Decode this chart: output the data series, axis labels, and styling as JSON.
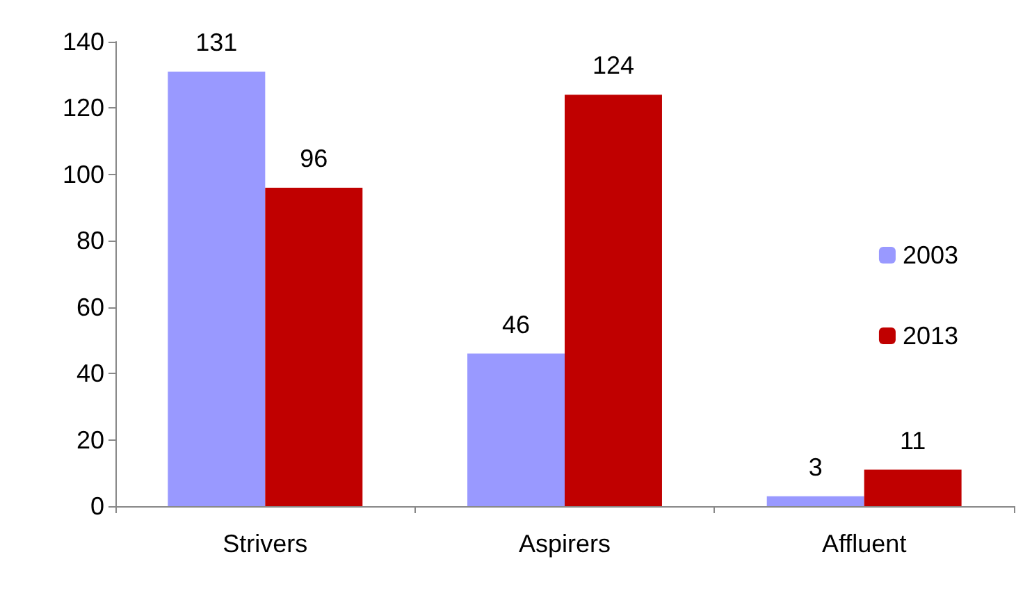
{
  "chart_data": {
    "type": "bar",
    "categories": [
      "Strivers",
      "Aspirers",
      "Affluent"
    ],
    "series": [
      {
        "name": "2003",
        "color": "#9999ff",
        "values": [
          131,
          46,
          3
        ]
      },
      {
        "name": "2013",
        "color": "#c00000",
        "values": [
          96,
          124,
          11
        ]
      }
    ],
    "ylim": [
      0,
      140
    ],
    "yticks": [
      0,
      20,
      40,
      60,
      80,
      100,
      120,
      140
    ],
    "data_labels": true,
    "grid": false,
    "legend": "right"
  }
}
